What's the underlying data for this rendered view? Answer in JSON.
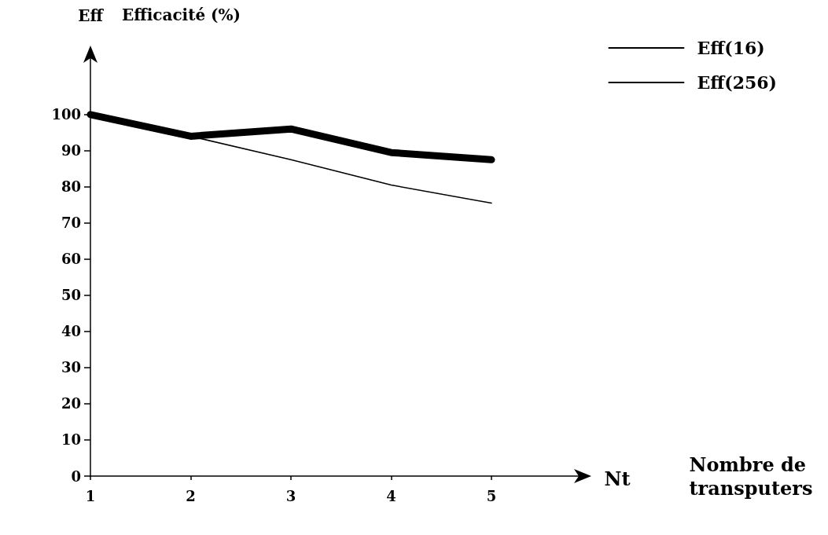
{
  "chart_data": {
    "type": "line",
    "title": "Efficacité (%)",
    "annotations": [
      "Eff",
      "Nt",
      "Nombre de transputers"
    ],
    "categories": [
      "1",
      "2",
      "3",
      "4",
      "5"
    ],
    "series": [
      {
        "name": "Eff(16)",
        "color": "#000000",
        "values": [
          100,
          94,
          96,
          89.5,
          87.5
        ]
      },
      {
        "name": "Eff(256)",
        "color": "#000000",
        "values": [
          100,
          94,
          87.5,
          80.5,
          75.5
        ]
      }
    ],
    "ylim": [
      0,
      118
    ],
    "yticks": [
      0,
      10,
      20,
      30,
      40,
      50,
      60,
      70,
      80,
      90,
      100
    ],
    "grid": false,
    "legend": "top right",
    "marker": "none",
    "line_style": "solid"
  }
}
